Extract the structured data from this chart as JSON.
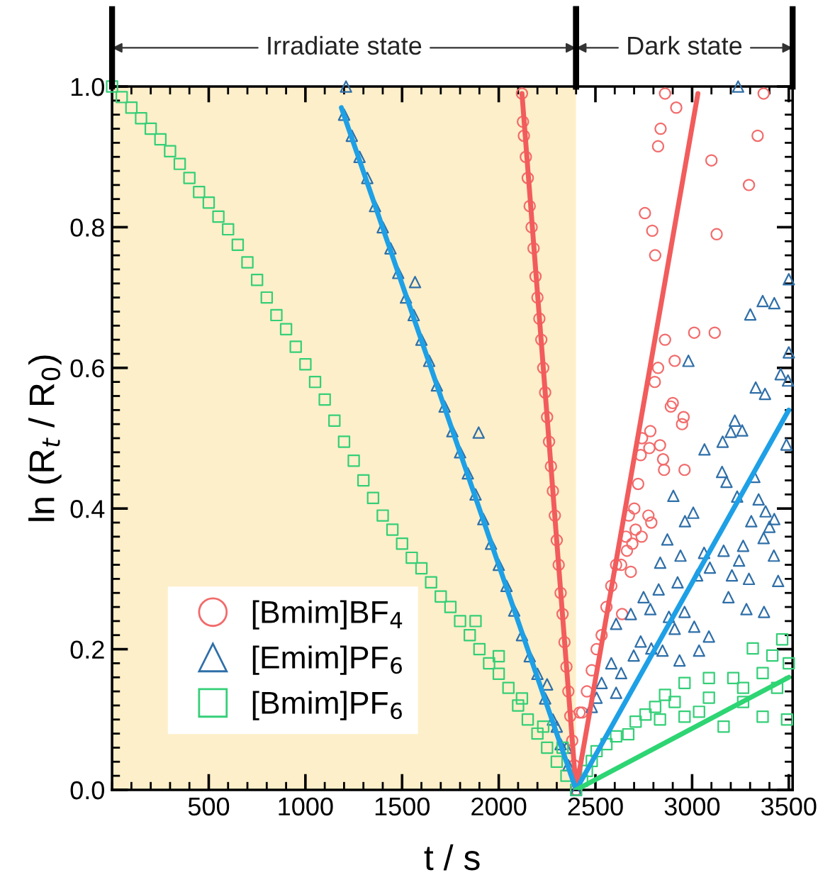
{
  "chart_data": {
    "type": "scatter",
    "xlabel": "t / s",
    "ylabel": "ln (R$_{t}$ / R$_{0}$)",
    "xlim": [
      0,
      3520
    ],
    "xticks": [
      500,
      1000,
      1500,
      2000,
      2500,
      3000,
      3500
    ],
    "ylim": [
      0,
      1.0
    ],
    "yticks": [
      {
        "value": 0,
        "label": "0.0"
      },
      0.2,
      0.4,
      0.6,
      0.8,
      {
        "value": 1,
        "label": "1.0"
      }
    ],
    "legend": "bottom left",
    "grid": false,
    "bands": [
      {
        "axis": "x",
        "from": 0,
        "to": 2400,
        "label": "Irradiate state",
        "color": "#fdefc9"
      },
      {
        "axis": "x",
        "from": 2400,
        "to": 3520,
        "label": "Dark state",
        "color": "#ffffff"
      }
    ],
    "series": [
      {
        "name": "[Bmim]BF$_{4}$",
        "marker": "circle",
        "color": "#f26b6b",
        "x": [
          2120,
          2125,
          2130,
          2140,
          2150,
          2160,
          2170,
          2180,
          2190,
          2200,
          2210,
          2220,
          2230,
          2240,
          2250,
          2260,
          2270,
          2280,
          2290,
          2300,
          2310,
          2320,
          2330,
          2340,
          2350,
          2360,
          2370,
          2380,
          2390,
          2400,
          2860,
          2918,
          2837,
          2824,
          3100,
          3370,
          3339,
          3294,
          3127,
          2756,
          2794,
          2809,
          3011,
          3117,
          2860,
          2910,
          2824,
          2807,
          2890,
          2900,
          2956,
          2948,
          2784,
          2834,
          2741,
          2779,
          2850,
          2734,
          2855,
          2961,
          2721,
          2701,
          2673,
          2774,
          2789,
          2708,
          2739,
          2658,
          2691,
          2663,
          2633,
          2607,
          2683,
          2582,
          2557,
          2638,
          2532,
          2506,
          2481,
          2456,
          2431,
          2418
        ],
        "values": [
          0.99,
          0.95,
          0.93,
          0.9,
          0.87,
          0.83,
          0.8,
          0.77,
          0.73,
          0.7,
          0.67,
          0.64,
          0.6,
          0.565,
          0.53,
          0.495,
          0.46,
          0.425,
          0.39,
          0.355,
          0.32,
          0.28,
          0.25,
          0.21,
          0.175,
          0.14,
          0.105,
          0.07,
          0.035,
          0.0,
          0.99,
          0.97,
          0.94,
          0.915,
          0.895,
          0.99,
          0.93,
          0.86,
          0.79,
          0.82,
          0.795,
          0.76,
          0.65,
          0.65,
          0.64,
          0.61,
          0.6,
          0.58,
          0.545,
          0.55,
          0.53,
          0.52,
          0.51,
          0.49,
          0.5,
          0.486,
          0.47,
          0.476,
          0.455,
          0.455,
          0.435,
          0.4,
          0.39,
          0.39,
          0.38,
          0.37,
          0.36,
          0.36,
          0.35,
          0.34,
          0.32,
          0.32,
          0.31,
          0.29,
          0.26,
          0.25,
          0.22,
          0.2,
          0.17,
          0.14,
          0.11,
          0.11
        ]
      },
      {
        "name": "[Emim]PF$_{6}$",
        "marker": "triangle",
        "color": "#2f6fa8",
        "x": [
          1210,
          1200,
          1240,
          1280,
          1320,
          1360,
          1400,
          1440,
          1480,
          1520,
          1560,
          1567,
          1600,
          1640,
          1680,
          1720,
          1760,
          1800,
          1840,
          1880,
          1896,
          1920,
          1960,
          2000,
          2040,
          2080,
          2120,
          2160,
          2200,
          2240,
          2250,
          2280,
          2300,
          2320,
          2350,
          2360,
          2400,
          3238,
          3500,
          3365,
          3301,
          3425,
          3500,
          3458,
          3496,
          3329,
          3377,
          2981,
          3221,
          3200,
          3259,
          3064,
          3158,
          3488,
          3155,
          3178,
          3322,
          3233,
          3344,
          2903,
          3006,
          2963,
          3380,
          3425,
          3306,
          3400,
          3370,
          2872,
          2835,
          2940,
          3062,
          3163,
          3264,
          3243,
          3423,
          2925,
          3026,
          3092,
          3206,
          3294,
          3445,
          2749,
          2827,
          2683,
          2607,
          2784,
          2880,
          2961,
          3188,
          3281,
          3372,
          3011,
          2910,
          3087,
          2734,
          2789,
          2698,
          2582,
          2633,
          2532,
          2506,
          2481,
          2607,
          2847,
          2935,
          3036
        ],
        "values": [
          1.0,
          0.96,
          0.93,
          0.9,
          0.87,
          0.83,
          0.8,
          0.77,
          0.735,
          0.7,
          0.675,
          0.722,
          0.64,
          0.61,
          0.575,
          0.545,
          0.51,
          0.48,
          0.45,
          0.42,
          0.508,
          0.385,
          0.35,
          0.32,
          0.29,
          0.255,
          0.22,
          0.19,
          0.165,
          0.13,
          0.15,
          0.1,
          0.09,
          0.065,
          0.06,
          0.035,
          0.0,
          1.0,
          0.726,
          0.695,
          0.676,
          0.692,
          0.622,
          0.591,
          0.582,
          0.572,
          0.563,
          0.61,
          0.525,
          0.509,
          0.511,
          0.484,
          0.495,
          0.491,
          0.452,
          0.438,
          0.445,
          0.417,
          0.413,
          0.418,
          0.394,
          0.382,
          0.396,
          0.385,
          0.382,
          0.374,
          0.358,
          0.356,
          0.323,
          0.333,
          0.337,
          0.34,
          0.347,
          0.326,
          0.333,
          0.295,
          0.305,
          0.316,
          0.305,
          0.3,
          0.297,
          0.274,
          0.285,
          0.25,
          0.236,
          0.257,
          0.246,
          0.253,
          0.274,
          0.257,
          0.253,
          0.232,
          0.229,
          0.218,
          0.211,
          0.201,
          0.191,
          0.18,
          0.166,
          0.152,
          0.131,
          0.118,
          0.138,
          0.198,
          0.184,
          0.198
        ]
      },
      {
        "name": "[Bmim]PF$_{6}$",
        "marker": "square",
        "color": "#35cf78",
        "x": [
          0,
          50,
          100,
          150,
          200,
          250,
          300,
          350,
          400,
          450,
          500,
          550,
          600,
          650,
          700,
          750,
          800,
          850,
          900,
          950,
          1000,
          1050,
          1100,
          1150,
          1200,
          1250,
          1300,
          1350,
          1400,
          1450,
          1500,
          1550,
          1600,
          1650,
          1700,
          1750,
          1800,
          1850,
          1880,
          1900,
          1950,
          2000,
          2000,
          2050,
          2100,
          2120,
          2150,
          2200,
          2230,
          2250,
          2300,
          2330,
          2350,
          2400,
          3466,
          3415,
          3314,
          3500,
          3365,
          3213,
          3264,
          3087,
          2961,
          2860,
          3491,
          3365,
          3163,
          3036,
          2910,
          2809,
          2759,
          2708,
          2670,
          2607,
          2557,
          2506,
          2481,
          2456,
          2431,
          2834,
          2961,
          3087,
          3264,
          3440
        ],
        "values": [
          1.0,
          0.985,
          0.97,
          0.955,
          0.94,
          0.925,
          0.908,
          0.89,
          0.87,
          0.85,
          0.835,
          0.815,
          0.797,
          0.775,
          0.75,
          0.725,
          0.7,
          0.675,
          0.655,
          0.63,
          0.605,
          0.58,
          0.555,
          0.525,
          0.495,
          0.468,
          0.44,
          0.415,
          0.39,
          0.37,
          0.35,
          0.33,
          0.315,
          0.295,
          0.275,
          0.26,
          0.24,
          0.22,
          0.24,
          0.2,
          0.18,
          0.165,
          0.19,
          0.145,
          0.12,
          0.13,
          0.1,
          0.08,
          0.09,
          0.06,
          0.04,
          0.06,
          0.02,
          0.0,
          0.214,
          0.191,
          0.201,
          0.18,
          0.166,
          0.159,
          0.145,
          0.159,
          0.152,
          0.135,
          0.1,
          0.104,
          0.09,
          0.111,
          0.125,
          0.118,
          0.107,
          0.097,
          0.079,
          0.076,
          0.065,
          0.055,
          0.041,
          0.027,
          0.013,
          0.1,
          0.104,
          0.131,
          0.125,
          0.145
        ]
      },
      {
        "type": "line",
        "color": "#f25c5c",
        "x": [
          2120,
          2400
        ],
        "values": [
          0.99,
          0.0
        ]
      },
      {
        "type": "line",
        "color": "#f25c5c",
        "x": [
          2400,
          3030
        ],
        "values": [
          0.0,
          0.99
        ]
      },
      {
        "type": "line",
        "color": "#1ea0e6",
        "x": [
          1186,
          2400
        ],
        "values": [
          0.97,
          0.0
        ]
      },
      {
        "type": "line",
        "color": "#1ea0e6",
        "x": [
          2400,
          3500
        ],
        "values": [
          0.0,
          0.54
        ]
      },
      {
        "type": "line",
        "color": "#2ed573",
        "x": [
          2400,
          3500
        ],
        "values": [
          0.0,
          0.16
        ]
      }
    ]
  }
}
